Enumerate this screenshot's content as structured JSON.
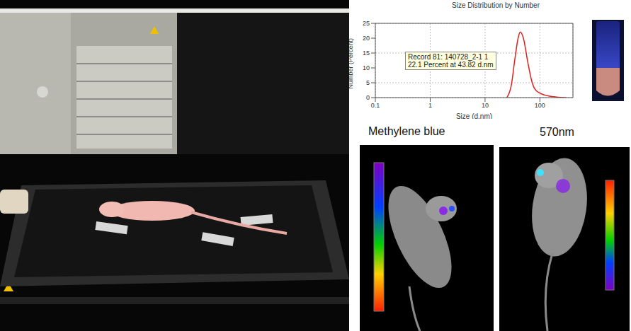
{
  "chart_data": {
    "type": "line",
    "title": "Size Distribution by Number",
    "x_label": "Size (d.nm)",
    "y_label": "Number (Percent)",
    "x": [
      25,
      30,
      35,
      40,
      43.82,
      50,
      60,
      70,
      80,
      100,
      150,
      200,
      300
    ],
    "values": [
      0,
      4,
      13,
      20,
      22.1,
      20,
      12,
      6,
      3,
      1.5,
      0.5,
      0.2,
      0
    ],
    "color": "#e02020",
    "log": "x",
    "grid": true,
    "xlim": [
      0.1,
      400
    ],
    "xticks": [
      0.1,
      1,
      10,
      100
    ],
    "ylim": [
      0,
      25
    ],
    "yticks": [
      0,
      5,
      10,
      15,
      20,
      25
    ],
    "annotations": [
      "Record 81: 140728_2-1 1",
      "22.1 Percent at 43.82 d.nm"
    ]
  },
  "panels": [
    {
      "label": "Methylene blue"
    },
    {
      "label": "570nm"
    }
  ]
}
